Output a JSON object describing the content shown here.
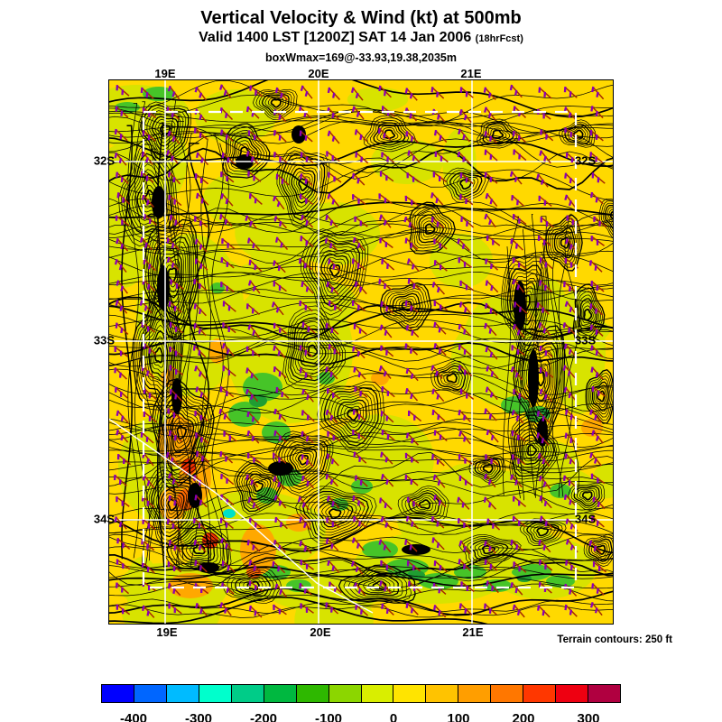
{
  "header": {
    "title": "Vertical Velocity & Wind (kt) at 500mb",
    "valid_line": "Valid 1400 LST [1200Z] SAT 14 Jan 2006",
    "fcst_tag": "(18hrFcst)",
    "box_line": "boxWmax=169@-33.93,19.38,2035m"
  },
  "map": {
    "x_ticks": [
      "19E",
      "20E",
      "21E"
    ],
    "y_ticks": [
      "32S",
      "33S",
      "34S"
    ],
    "footnote": "Terrain contours: 250 ft"
  },
  "colorbar": {
    "colors": [
      "#0000FF",
      "#0066FF",
      "#00BBFF",
      "#00FFCC",
      "#00CC88",
      "#00B840",
      "#2EB800",
      "#8CD600",
      "#D9EE00",
      "#FFE400",
      "#FFC300",
      "#FF9E00",
      "#FF7700",
      "#FF3700",
      "#EE0011",
      "#B00040"
    ],
    "tick_labels": [
      "-400",
      "-300",
      "-200",
      "-100",
      "0",
      "100",
      "200",
      "300"
    ]
  },
  "chart_data": {
    "type": "heatmap",
    "title": "Vertical Velocity & Wind (kt) at 500mb",
    "subtitle": "Valid 1400 LST [1200Z] SAT 14 Jan 2006 (18hrFcst)",
    "annotation": "boxWmax=169@-33.93,19.38,2035m",
    "x_axis": {
      "ticks": [
        "19E",
        "20E",
        "21E"
      ]
    },
    "y_axis": {
      "ticks": [
        "32S",
        "33S",
        "34S"
      ]
    },
    "colorbar": {
      "values": [
        -400,
        -300,
        -200,
        -100,
        0,
        100,
        200,
        300
      ],
      "segment_colors": [
        "#0000FF",
        "#0066FF",
        "#00BBFF",
        "#00FFCC",
        "#00CC88",
        "#00B840",
        "#2EB800",
        "#8CD600",
        "#D9EE00",
        "#FFE400",
        "#FFC300",
        "#FF9E00",
        "#FF7700",
        "#FF3700",
        "#EE0011",
        "#B00040"
      ],
      "segment_range": [
        -450,
        350
      ]
    },
    "overlays": [
      "wind barbs",
      "terrain contours every 250 ft",
      "white lat-lon grid",
      "white dashed subdomain box"
    ],
    "footnote": "Terrain contours: 250 ft"
  }
}
